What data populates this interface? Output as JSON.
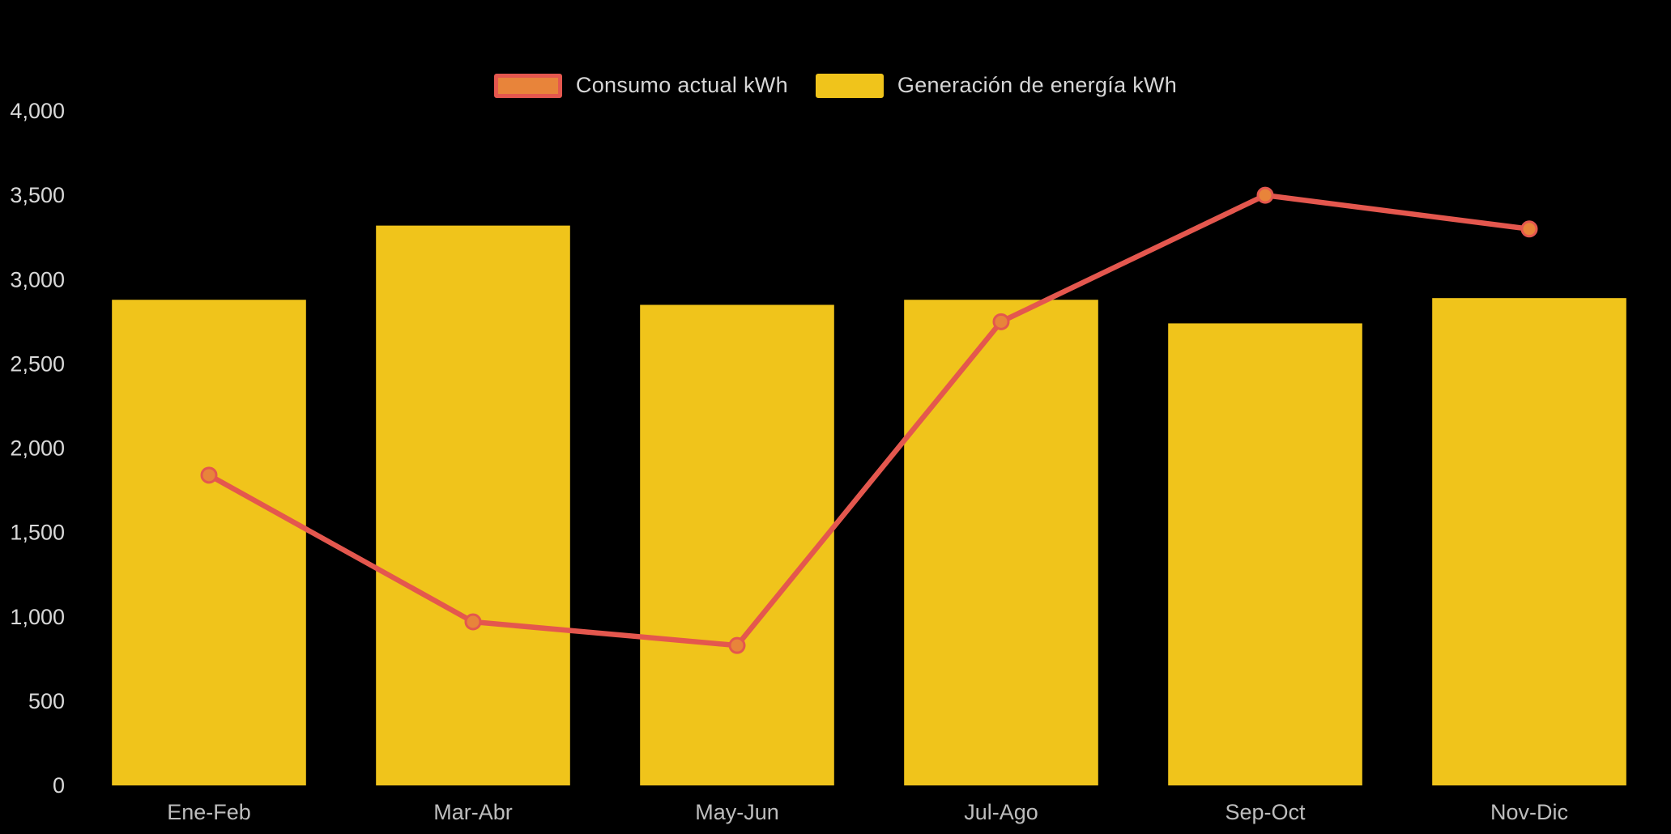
{
  "chart_data": {
    "type": "bar",
    "subtype": "bar+line combo",
    "categories": [
      "Ene-Feb",
      "Mar-Abr",
      "May-Jun",
      "Jul-Ago",
      "Sep-Oct",
      "Nov-Dic"
    ],
    "series": [
      {
        "name": "Consumo actual kWh",
        "type": "line",
        "values": [
          1840,
          970,
          830,
          2750,
          3500,
          3300
        ],
        "color": "#E4574E",
        "marker_fill": "#E8843A"
      },
      {
        "name": "Generación de energía kWh",
        "type": "bar",
        "values": [
          2880,
          3320,
          2850,
          2880,
          2740,
          2890
        ],
        "color": "#F0C41B"
      }
    ],
    "title": "",
    "xlabel": "",
    "ylabel": "",
    "ylim": [
      0,
      4000
    ],
    "y_ticks": [
      0,
      500,
      1000,
      1500,
      2000,
      2500,
      3000,
      3500,
      4000
    ],
    "y_tick_labels": [
      "0",
      "500",
      "1,000",
      "1,500",
      "2,000",
      "2,500",
      "3,000",
      "3,500",
      "4,000"
    ],
    "grid": false,
    "legend_position": "top-center",
    "background_color": "#000000",
    "y_tick_color": "#d9d9d9",
    "x_label_color": "#bdbdbd"
  },
  "legend": {
    "items": [
      {
        "label": "Consumo actual kWh",
        "swatch_fill": "#E8843A",
        "swatch_stroke": "#E4574E"
      },
      {
        "label": "Generación de energía kWh",
        "swatch_fill": "#F0C41B",
        "swatch_stroke": "#F0C41B"
      }
    ]
  }
}
